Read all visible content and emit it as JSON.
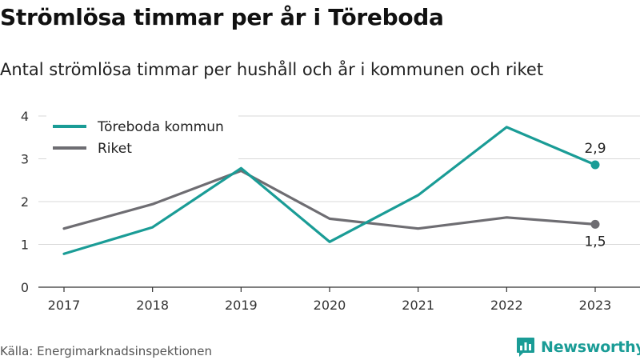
{
  "title": "Strömlösa timmar per år i Töreboda",
  "subtitle": "Antal strömlösa timmar per hushåll och år i kommunen och riket",
  "source": "Källa: Energimarknadsinspektionen",
  "brand": {
    "name": "Newsworthy",
    "icon": "bar-chart-speech-bubble-icon",
    "color": "#1a9c96"
  },
  "chart_data": {
    "type": "line",
    "x": [
      "2017",
      "2018",
      "2019",
      "2020",
      "2021",
      "2022",
      "2023"
    ],
    "ylim": [
      0,
      4
    ],
    "yticks": [
      "0",
      "1",
      "2",
      "3",
      "4"
    ],
    "grid": true,
    "legend_position": "top-left",
    "series": [
      {
        "name": "Töreboda kommun",
        "color": "#1a9c96",
        "values": [
          0.78,
          1.4,
          2.78,
          1.06,
          2.15,
          3.74,
          2.86
        ],
        "end_label": "2,9"
      },
      {
        "name": "Riket",
        "color": "#6e6d72",
        "values": [
          1.37,
          1.94,
          2.72,
          1.6,
          1.37,
          1.63,
          1.47
        ],
        "end_label": "1,5"
      }
    ]
  }
}
